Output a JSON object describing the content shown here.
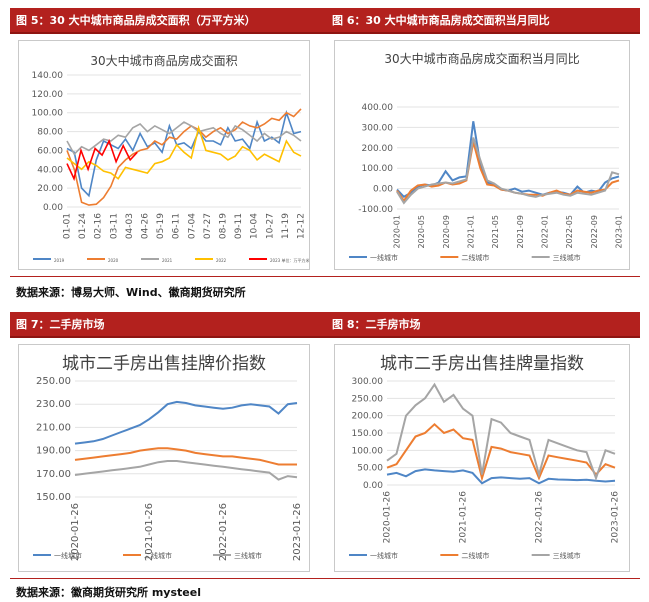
{
  "headers": {
    "fig5": "图 5：30 大中城市商品房成交面积（万平方米）",
    "fig6": "图 6：30 大中城市商品房成交面积当月同比",
    "fig7": "图 7：二手房市场",
    "fig8": "图 8：二手房市场"
  },
  "sources": {
    "top": "数据来源：博易大师、Wind、徽商期货研究所",
    "bottom": "数据来源：徽商期货研究所   mysteel"
  },
  "colors": {
    "header_bg": "#b3211e",
    "blue": "#4f86c6",
    "orange": "#ed7d31",
    "gray": "#a5a5a5",
    "gold": "#ffc000",
    "red": "#ff0000"
  },
  "chart_data": [
    {
      "id": "fig5",
      "type": "line",
      "title": "30大中城市商品房成交面积",
      "x_ticks": [
        "01-01",
        "01-24",
        "02-16",
        "03-11",
        "04-03",
        "04-26",
        "05-19",
        "06-11",
        "07-04",
        "07-27",
        "08-19",
        "09-11",
        "10-04",
        "10-27",
        "11-19",
        "12-12"
      ],
      "ylim": [
        0,
        140
      ],
      "y_ticks": [
        "0.00",
        "20.00",
        "40.00",
        "60.00",
        "80.00",
        "100.00",
        "120.00",
        "140.00"
      ],
      "series": [
        {
          "name": "2019",
          "color": "#4f86c6",
          "values": [
            62,
            58,
            20,
            12,
            50,
            70,
            66,
            62,
            72,
            60,
            78,
            64,
            68,
            58,
            86,
            66,
            68,
            62,
            80,
            70,
            70,
            66,
            84,
            70,
            72,
            62,
            90,
            70,
            74,
            68,
            100,
            78,
            80
          ]
        },
        {
          "name": "2020",
          "color": "#ed7d31",
          "values": [
            60,
            40,
            5,
            2,
            3,
            10,
            22,
            42,
            50,
            56,
            60,
            62,
            70,
            66,
            74,
            72,
            80,
            86,
            82,
            74,
            80,
            84,
            78,
            82,
            90,
            86,
            84,
            88,
            94,
            92,
            100,
            96,
            104
          ]
        },
        {
          "name": "2021",
          "color": "#a5a5a5",
          "values": [
            70,
            56,
            64,
            60,
            66,
            72,
            70,
            76,
            74,
            84,
            88,
            80,
            86,
            82,
            78,
            84,
            90,
            86,
            80,
            82,
            84,
            78,
            74,
            86,
            82,
            76,
            70,
            78,
            72,
            74,
            80,
            76,
            70
          ]
        },
        {
          "name": "2022",
          "color": "#ffc000",
          "values": [
            52,
            46,
            40,
            48,
            44,
            38,
            36,
            30,
            42,
            40,
            38,
            36,
            46,
            48,
            52,
            66,
            58,
            52,
            84,
            60,
            58,
            56,
            50,
            54,
            64,
            60,
            50,
            56,
            52,
            48,
            70,
            58,
            54
          ]
        },
        {
          "name": "2023 单位：万平方米",
          "color": "#ff0000",
          "values": [
            46,
            30,
            60,
            40,
            62,
            55,
            70,
            48,
            65,
            50,
            58
          ]
        }
      ]
    },
    {
      "id": "fig6",
      "type": "line",
      "title": "30大中城市商品房成交面积当月同比",
      "x_ticks": [
        "2020-01",
        "2020-05",
        "2020-09",
        "2021-01",
        "2021-05",
        "2021-09",
        "2022-01",
        "2022-05",
        "2022-09",
        "2023-01"
      ],
      "ylim": [
        -100,
        400
      ],
      "y_ticks": [
        "-100.00",
        "0.00",
        "100.00",
        "200.00",
        "300.00",
        "400.00"
      ],
      "series": [
        {
          "name": "一线城市",
          "color": "#4f86c6",
          "values": [
            -5,
            -40,
            -20,
            10,
            20,
            15,
            30,
            85,
            40,
            55,
            60,
            330,
            120,
            30,
            20,
            -5,
            -10,
            0,
            -15,
            -10,
            -20,
            -30,
            -20,
            -15,
            -20,
            -30,
            10,
            -20,
            -10,
            -15,
            30,
            50,
            60
          ]
        },
        {
          "name": "二线城市",
          "color": "#ed7d31",
          "values": [
            -10,
            -60,
            -10,
            15,
            20,
            10,
            15,
            30,
            20,
            25,
            40,
            230,
            100,
            20,
            15,
            -5,
            -10,
            -20,
            -25,
            -30,
            -30,
            -35,
            -20,
            -10,
            -25,
            -30,
            -10,
            -15,
            -20,
            -10,
            -5,
            30,
            40
          ]
        },
        {
          "name": "三线城市",
          "color": "#a5a5a5",
          "values": [
            -15,
            -70,
            -30,
            0,
            10,
            20,
            25,
            30,
            25,
            35,
            45,
            250,
            140,
            40,
            25,
            0,
            -10,
            -20,
            -25,
            -35,
            -40,
            -30,
            -25,
            -20,
            -30,
            -35,
            -20,
            -25,
            -30,
            -20,
            -10,
            80,
            70
          ]
        }
      ]
    },
    {
      "id": "fig7",
      "type": "line",
      "title": "城市二手房出售挂牌价指数",
      "x_ticks": [
        "2020-01-26",
        "2021-01-26",
        "2022-01-26",
        "2023-01-26"
      ],
      "ylim": [
        150,
        250
      ],
      "y_ticks": [
        "150.00",
        "170.00",
        "190.00",
        "210.00",
        "230.00",
        "250.00"
      ],
      "series": [
        {
          "name": "一线城市",
          "color": "#4f86c6",
          "values": [
            196,
            197,
            198,
            200,
            203,
            206,
            209,
            212,
            217,
            223,
            230,
            232,
            231,
            229,
            228,
            227,
            226,
            227,
            229,
            230,
            229,
            228,
            222,
            230,
            231
          ]
        },
        {
          "name": "二线城市",
          "color": "#ed7d31",
          "values": [
            182,
            183,
            184,
            185,
            186,
            187,
            188,
            190,
            191,
            192,
            192,
            191,
            190,
            188,
            187,
            186,
            185,
            185,
            184,
            183,
            182,
            180,
            178,
            178,
            178
          ]
        },
        {
          "name": "三线城市",
          "color": "#a5a5a5",
          "values": [
            169,
            170,
            171,
            172,
            173,
            174,
            175,
            176,
            178,
            180,
            181,
            181,
            180,
            179,
            178,
            177,
            176,
            175,
            174,
            173,
            172,
            171,
            165,
            168,
            167
          ]
        }
      ]
    },
    {
      "id": "fig8",
      "type": "line",
      "title": "城市二手房出售挂牌量指数",
      "x_ticks": [
        "2020-01-26",
        "2021-01-26",
        "2022-01-26",
        "2023-01-26"
      ],
      "ylim": [
        0,
        300
      ],
      "y_ticks": [
        "0.00",
        "50.00",
        "100.00",
        "150.00",
        "200.00",
        "250.00",
        "300.00"
      ],
      "series": [
        {
          "name": "一线城市",
          "color": "#4f86c6",
          "values": [
            30,
            35,
            25,
            40,
            45,
            42,
            40,
            38,
            42,
            35,
            5,
            20,
            22,
            20,
            18,
            20,
            5,
            18,
            16,
            15,
            14,
            15,
            12,
            10,
            12
          ]
        },
        {
          "name": "二线城市",
          "color": "#ed7d31",
          "values": [
            50,
            60,
            100,
            140,
            150,
            175,
            150,
            160,
            135,
            130,
            20,
            110,
            105,
            95,
            90,
            85,
            20,
            85,
            80,
            75,
            70,
            65,
            30,
            60,
            50
          ]
        },
        {
          "name": "三线城市",
          "color": "#a5a5a5",
          "values": [
            70,
            90,
            200,
            230,
            250,
            290,
            240,
            260,
            220,
            200,
            30,
            190,
            180,
            150,
            140,
            130,
            30,
            130,
            120,
            110,
            100,
            95,
            20,
            100,
            90
          ]
        }
      ]
    }
  ]
}
